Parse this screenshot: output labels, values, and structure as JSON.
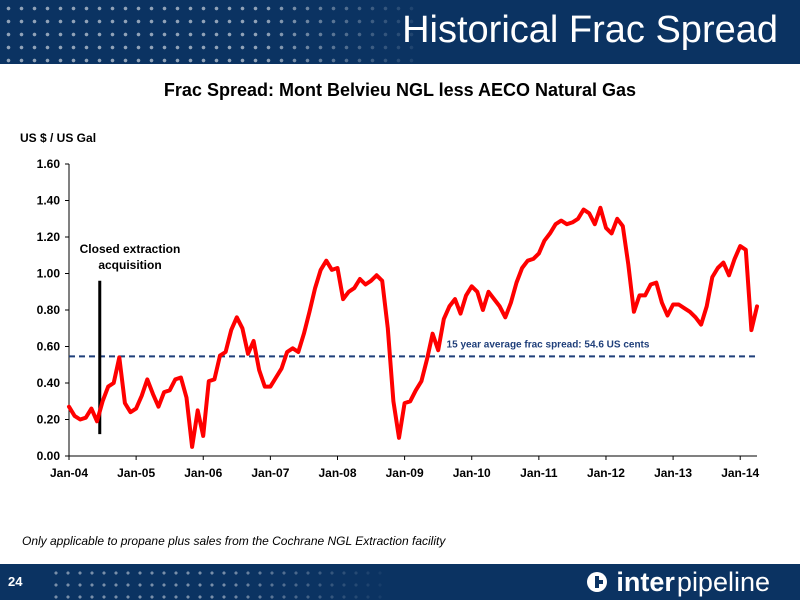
{
  "header": {
    "title": "Historical Frac Spread"
  },
  "chart_title": "Frac Spread: Mont Belvieu NGL less AECO Natural Gas",
  "footnote": "Only applicable to propane plus sales from the Cochrane NGL Extraction facility",
  "footer": {
    "page_number": "24",
    "logo_bold": "inter",
    "logo_light": "pipeline"
  },
  "colors": {
    "brand_navy": "#0b3362",
    "series_red": "#ff0000",
    "average_line": "#1f3f7a"
  },
  "chart_data": {
    "type": "line",
    "ylabel": "US $ / US Gal",
    "ylim": [
      0,
      1.6
    ],
    "yticks": [
      "0.00",
      "0.20",
      "0.40",
      "0.60",
      "0.80",
      "1.00",
      "1.20",
      "1.40",
      "1.60"
    ],
    "xlim": [
      0,
      123
    ],
    "xticks": [
      {
        "label": "Jan-04",
        "x": 0
      },
      {
        "label": "Jan-05",
        "x": 12
      },
      {
        "label": "Jan-06",
        "x": 24
      },
      {
        "label": "Jan-07",
        "x": 36
      },
      {
        "label": "Jan-08",
        "x": 48
      },
      {
        "label": "Jan-09",
        "x": 60
      },
      {
        "label": "Jan-10",
        "x": 72
      },
      {
        "label": "Jan-11",
        "x": 84
      },
      {
        "label": "Jan-12",
        "x": 96
      },
      {
        "label": "Jan-13",
        "x": 108
      },
      {
        "label": "Jan-14",
        "x": 120
      }
    ],
    "grid": false,
    "series": [
      {
        "values": [
          0.27,
          0.22,
          0.2,
          0.21,
          0.26,
          0.19,
          0.3,
          0.38,
          0.4,
          0.54,
          0.29,
          0.24,
          0.26,
          0.33,
          0.42,
          0.34,
          0.27,
          0.35,
          0.36,
          0.42,
          0.43,
          0.32,
          0.05,
          0.25,
          0.11,
          0.41,
          0.42,
          0.55,
          0.57,
          0.69,
          0.76,
          0.7,
          0.56,
          0.63,
          0.47,
          0.38,
          0.38,
          0.43,
          0.48,
          0.57,
          0.59,
          0.57,
          0.67,
          0.79,
          0.92,
          1.02,
          1.07,
          1.02,
          1.03,
          0.86,
          0.9,
          0.92,
          0.97,
          0.94,
          0.96,
          0.99,
          0.96,
          0.7,
          0.3,
          0.1,
          0.29,
          0.3,
          0.36,
          0.41,
          0.53,
          0.67,
          0.58,
          0.75,
          0.82,
          0.86,
          0.78,
          0.88,
          0.93,
          0.9,
          0.8,
          0.9,
          0.86,
          0.82,
          0.76,
          0.84,
          0.95,
          1.03,
          1.07,
          1.08,
          1.11,
          1.18,
          1.22,
          1.27,
          1.29,
          1.27,
          1.28,
          1.3,
          1.35,
          1.33,
          1.27,
          1.36,
          1.25,
          1.22,
          1.3,
          1.26,
          1.05,
          0.79,
          0.88,
          0.88,
          0.94,
          0.95,
          0.84,
          0.77,
          0.83,
          0.83,
          0.81,
          0.79,
          0.76,
          0.72,
          0.82,
          0.98,
          1.03,
          1.06,
          0.99,
          1.08,
          1.15,
          1.13,
          0.69,
          0.82
        ]
      }
    ],
    "reference_line": {
      "value": 0.546,
      "label": "15 year average frac spread: 54.6 US cents"
    },
    "annotation": {
      "lines": [
        "Closed extraction",
        "acquisition"
      ],
      "x": 5.5,
      "y_top": 0.96,
      "y_bottom": 0.12
    }
  }
}
